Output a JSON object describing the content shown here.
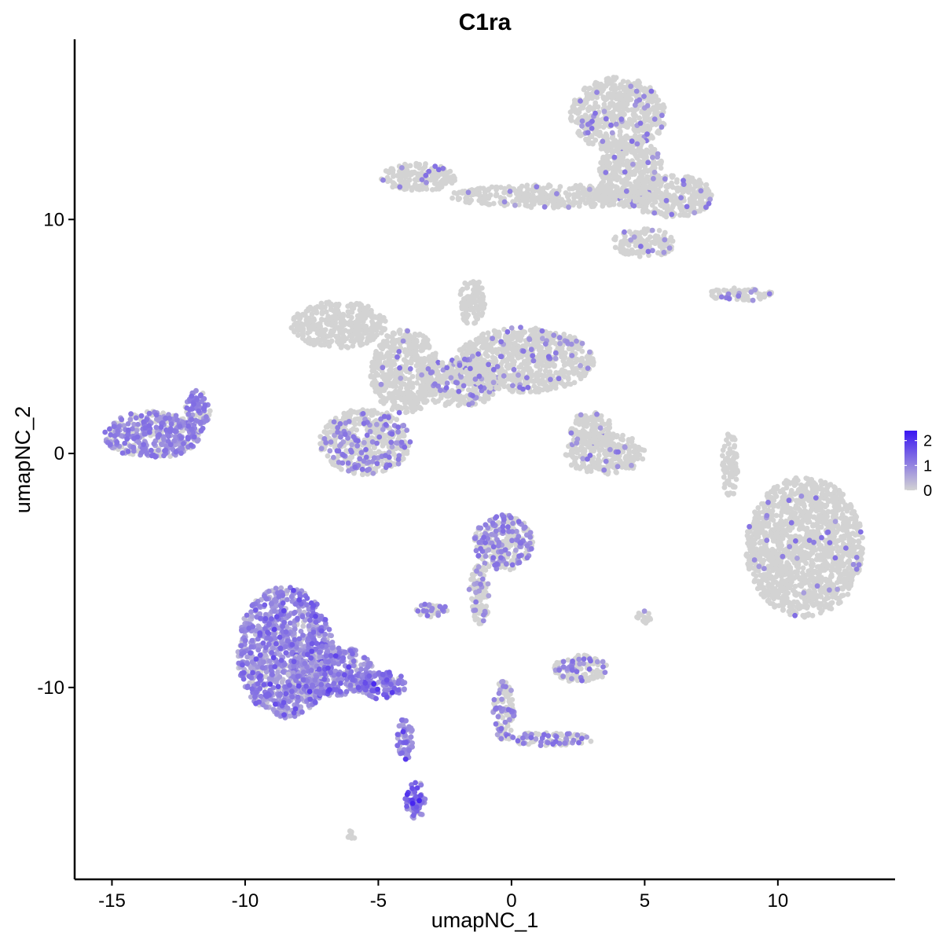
{
  "chart_data": {
    "type": "scatter",
    "title": "C1ra",
    "xlabel": "umapNC_1",
    "ylabel": "umapNC_2",
    "xlim": [
      -16.4,
      14.4
    ],
    "ylim": [
      -18.2,
      17.7
    ],
    "x_ticks": [
      -15,
      -10,
      -5,
      0,
      5,
      10
    ],
    "y_ticks": [
      -10,
      0,
      10
    ],
    "x_tick_labels": [
      "-15",
      "-10",
      "-5",
      "0",
      "5",
      "10"
    ],
    "y_tick_labels": [
      "-10",
      "0",
      "10"
    ],
    "grid": false,
    "legend": {
      "placement": "right",
      "labels": [
        "2",
        "1",
        "0"
      ],
      "values": [
        2,
        1,
        0
      ],
      "range": [
        0,
        2.4
      ],
      "low_color": "#d3d3d3",
      "high_color": "#3a16f2"
    },
    "clusters": [
      {
        "cx": 4.0,
        "cy": 14.5,
        "rx": 1.8,
        "ry": 1.6,
        "expr": 0.02
      },
      {
        "cx": 4.5,
        "cy": 12.0,
        "rx": 1.2,
        "ry": 1.5,
        "expr": 0.02
      },
      {
        "cx": 6.0,
        "cy": 11.0,
        "rx": 1.6,
        "ry": 0.9,
        "expr": 0.02
      },
      {
        "cx": 1.5,
        "cy": 11.0,
        "rx": 3.8,
        "ry": 0.5,
        "expr": 0.01
      },
      {
        "cx": -3.5,
        "cy": 11.8,
        "rx": 1.4,
        "ry": 0.6,
        "expr": 0.01
      },
      {
        "cx": 5.0,
        "cy": 9.0,
        "rx": 1.2,
        "ry": 0.6,
        "expr": 0.03
      },
      {
        "cx": -6.5,
        "cy": 5.5,
        "rx": 1.8,
        "ry": 1.0,
        "expr": 0.0
      },
      {
        "cx": -4.0,
        "cy": 3.5,
        "rx": 1.3,
        "ry": 1.8,
        "expr": 0.01
      },
      {
        "cx": -2.0,
        "cy": 3.0,
        "rx": 1.6,
        "ry": 1.0,
        "expr": 0.04
      },
      {
        "cx": -5.5,
        "cy": 0.5,
        "rx": 1.7,
        "ry": 1.4,
        "expr": 0.08
      },
      {
        "cx": 0.5,
        "cy": 4.0,
        "rx": 2.6,
        "ry": 1.4,
        "expr": 0.03
      },
      {
        "cx": -1.5,
        "cy": 6.5,
        "rx": 0.5,
        "ry": 1.0,
        "expr": 0.0
      },
      {
        "cx": -13.5,
        "cy": 0.8,
        "rx": 1.8,
        "ry": 1.0,
        "expr": 0.22
      },
      {
        "cx": -11.8,
        "cy": 1.8,
        "rx": 0.5,
        "ry": 0.9,
        "expr": 0.2
      },
      {
        "cx": 8.6,
        "cy": 6.8,
        "rx": 1.2,
        "ry": 0.3,
        "expr": 0.03
      },
      {
        "cx": 3.5,
        "cy": 0.0,
        "rx": 1.5,
        "ry": 0.9,
        "expr": 0.03
      },
      {
        "cx": 3.0,
        "cy": 1.0,
        "rx": 0.8,
        "ry": 0.8,
        "expr": 0.02
      },
      {
        "cx": 8.2,
        "cy": -0.5,
        "rx": 0.3,
        "ry": 1.4,
        "expr": 0.0
      },
      {
        "cx": 11.0,
        "cy": -4.0,
        "rx": 2.2,
        "ry": 3.0,
        "expr": 0.01
      },
      {
        "cx": -0.3,
        "cy": -3.8,
        "rx": 1.1,
        "ry": 1.2,
        "expr": 0.15
      },
      {
        "cx": -1.2,
        "cy": -6.0,
        "rx": 0.4,
        "ry": 1.3,
        "expr": 0.08
      },
      {
        "cx": -3.0,
        "cy": -6.7,
        "rx": 0.6,
        "ry": 0.3,
        "expr": 0.2
      },
      {
        "cx": 2.6,
        "cy": -9.2,
        "rx": 1.0,
        "ry": 0.6,
        "expr": 0.1
      },
      {
        "cx": 5.0,
        "cy": -7.0,
        "rx": 0.3,
        "ry": 0.3,
        "expr": 0.05
      },
      {
        "cx": -0.3,
        "cy": -11.0,
        "rx": 0.4,
        "ry": 1.3,
        "expr": 0.12
      },
      {
        "cx": 1.5,
        "cy": -12.2,
        "rx": 1.6,
        "ry": 0.3,
        "expr": 0.12
      },
      {
        "cx": -8.5,
        "cy": -8.5,
        "rx": 1.8,
        "ry": 2.8,
        "expr": 0.75
      },
      {
        "cx": -6.8,
        "cy": -9.3,
        "rx": 1.6,
        "ry": 1.1,
        "expr": 0.8
      },
      {
        "cx": -5.0,
        "cy": -9.9,
        "rx": 1.1,
        "ry": 0.6,
        "expr": 0.95
      },
      {
        "cx": -4.0,
        "cy": -12.2,
        "rx": 0.3,
        "ry": 0.9,
        "expr": 0.9
      },
      {
        "cx": -3.6,
        "cy": -14.8,
        "rx": 0.4,
        "ry": 0.8,
        "expr": 1.05
      },
      {
        "cx": -6.0,
        "cy": -16.3,
        "rx": 0.2,
        "ry": 0.2,
        "expr": 0.0
      }
    ]
  }
}
